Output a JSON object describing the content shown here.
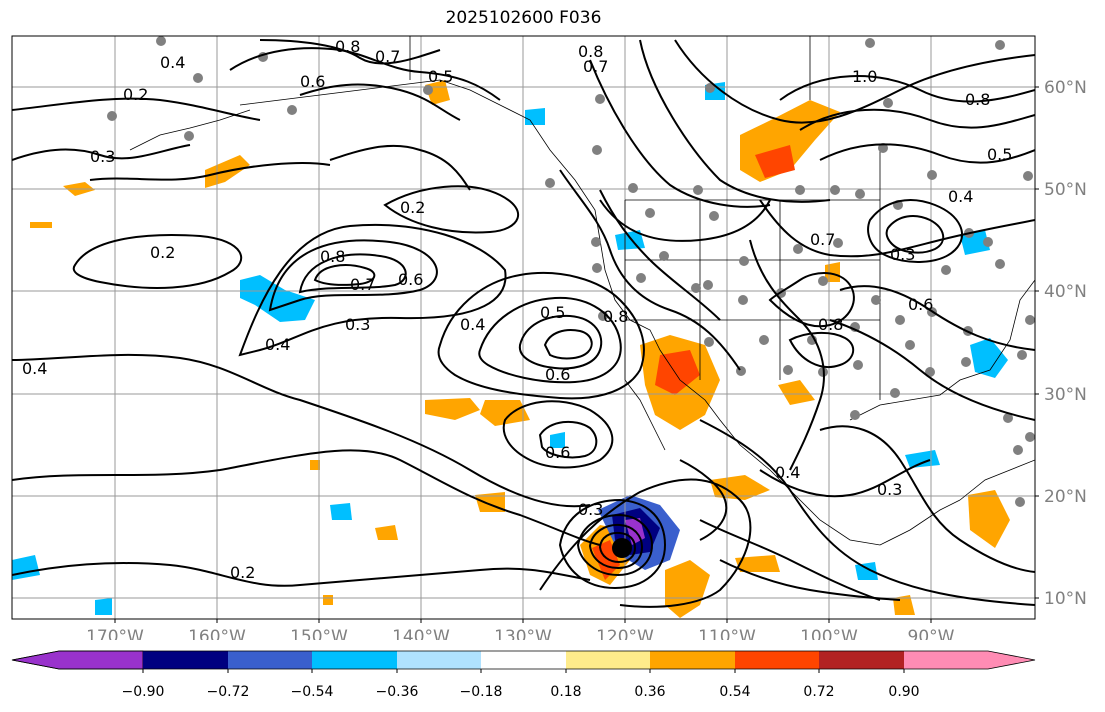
{
  "title": "2025102600 F036",
  "lon_labels": [
    "170°W",
    "160°W",
    "150°W",
    "140°W",
    "130°W",
    "120°W",
    "110°W",
    "100°W",
    "90°W"
  ],
  "lat_labels": [
    "60°N",
    "50°N",
    "40°N",
    "30°N",
    "20°N",
    "10°N"
  ],
  "colorbar": {
    "colors": [
      "#9932cc",
      "#000080",
      "#3a5fcd",
      "#00bfff",
      "#b0e2ff",
      "#ffffff",
      "#ffec8b",
      "#ffa500",
      "#ff4500",
      "#b22222",
      "#ff8cb4"
    ],
    "tick_labels": [
      "−0.90",
      "−0.72",
      "−0.54",
      "−0.36",
      "−0.18",
      "0.18",
      "0.36",
      "0.54",
      "0.72",
      "0.90"
    ]
  },
  "contour_labels": [
    "0.8",
    "0.7",
    "0.6",
    "0.5",
    "0.4",
    "0.2",
    "0.3",
    "0.8",
    "0.7",
    "1.0",
    "0.8",
    "0.5",
    "0.4",
    "0.2",
    "0.2",
    "0.8",
    "0.7",
    "0.6",
    "0.3",
    "0.4",
    "0.4",
    "0.5",
    "0.8",
    "0.6",
    "0.6",
    "0.3",
    "0.4",
    "0.4",
    "0.2",
    "0.3",
    "0.8",
    "0.6",
    "0.7",
    "0.3"
  ],
  "colors": {
    "contour": "#000000",
    "grid": "#999999",
    "coast": "#000000",
    "station": "#808080",
    "axis_label": "#808080",
    "center_marker": "#000000"
  }
}
